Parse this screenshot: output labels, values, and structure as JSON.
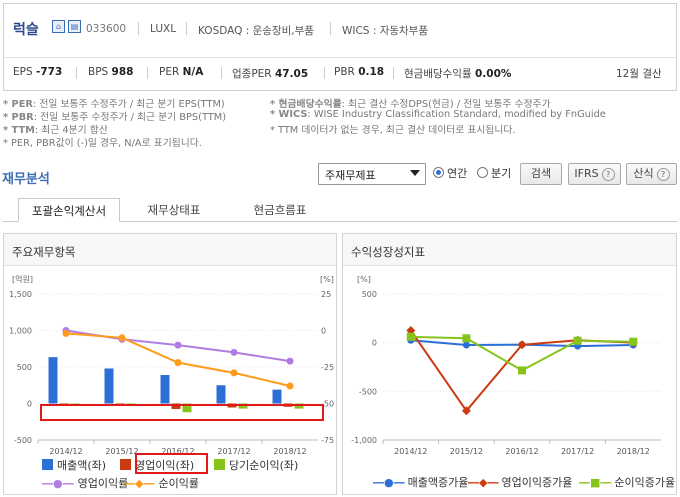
{
  "company": {
    "name": "럭슬",
    "code": "033600",
    "ticker": "LUXL",
    "market": "KOSDAQ : 운송장비,부품",
    "wics": "WICS : 자동차부품",
    "icon1": "building-icon",
    "icon2": "document-icon"
  },
  "stats": {
    "eps_label": "EPS",
    "eps": "-773",
    "bps_label": "BPS",
    "bps": "988",
    "per_label": "PER",
    "per": "N/A",
    "ind_per_label": "업종PER",
    "ind_per": "47.05",
    "pbr_label": "PBR",
    "pbr": "0.18",
    "div_label": "현금배당수익률",
    "div": "0.00%",
    "fiscal": "12월 결산"
  },
  "notes": {
    "left": [
      {
        "key": "* PER",
        "text": ": 전일 보통주 수정주가 / 최근 분기 EPS(TTM)"
      },
      {
        "key": "* PBR",
        "text": ": 전일 보통주 수정주가 / 최근 분기 BPS(TTM)"
      },
      {
        "key": "* TTM",
        "text": ": 최근 4분기 합산"
      },
      {
        "key": "",
        "text": "* PER, PBR값이 (-)일 경우, N/A로 표기됩니다."
      }
    ],
    "right": [
      {
        "key": "* 현금배당수익률",
        "text": ": 최근 결산 수정DPS(현금) / 전일 보통주 수정주가"
      },
      {
        "key": "* WICS",
        "text": ": WISE Industry Classification Standard, modified by FnGuide"
      },
      {
        "key": "",
        "text": "* TTM 데이터가 없는 경우, 최근 결산 데이터로 표시됩니다."
      }
    ]
  },
  "section": {
    "title": "재무분석",
    "select_value": "주재무제표",
    "radio_annual": "연간",
    "radio_quarter": "분기",
    "search_btn": "검색",
    "ifrs_btn": "IFRS",
    "formula_btn": "산식",
    "help_icon": "question-icon"
  },
  "tabs": [
    "포괄손익계산서",
    "재무상태표",
    "현금흐름표"
  ],
  "panels": {
    "left_title": "주요재무항목",
    "right_title": "수익성장성지표"
  },
  "chart_data": [
    {
      "type": "bar",
      "title": "주요재무항목",
      "categories": [
        "2014/12",
        "2015/12",
        "2016/12",
        "2017/12",
        "2018/12"
      ],
      "y_left_unit": "[억원]",
      "y_right_unit": "[%]",
      "ylim_left": [
        -500,
        1500
      ],
      "yticks_left": [
        "-500",
        "0",
        "500",
        "1,000",
        "1,500"
      ],
      "ylim_right": [
        -75,
        25
      ],
      "yticks_right": [
        "-75",
        "-50",
        "-25",
        "0",
        "25"
      ],
      "series": [
        {
          "name": "매출액(좌)",
          "kind": "bar",
          "axis": "left",
          "color": "#2b6fd8",
          "values": [
            635,
            480,
            390,
            250,
            190
          ]
        },
        {
          "name": "영업이익(좌)",
          "kind": "bar",
          "axis": "left",
          "color": "#cc3b10",
          "values": [
            -20,
            -30,
            -75,
            -55,
            -45
          ]
        },
        {
          "name": "당기순이익(좌)",
          "kind": "bar",
          "axis": "left",
          "color": "#86c41b",
          "values": [
            -25,
            -20,
            -120,
            -70,
            -70
          ]
        },
        {
          "name": "영업이익률",
          "kind": "line",
          "axis": "right",
          "color": "#b07ee0",
          "values": [
            0,
            -6,
            -10,
            -15,
            -21
          ]
        },
        {
          "name": "순이익률",
          "kind": "line",
          "axis": "right",
          "color": "#ff9a1a",
          "values": [
            -2,
            -5,
            -22,
            -29,
            -38
          ]
        }
      ]
    },
    {
      "type": "line",
      "title": "수익성장성지표",
      "categories": [
        "2014/12",
        "2015/12",
        "2016/12",
        "2017/12",
        "2018/12"
      ],
      "y_unit": "[%]",
      "ylim": [
        -1000,
        500
      ],
      "yticks": [
        "-1,000",
        "-500",
        "0",
        "500"
      ],
      "series": [
        {
          "name": "매출액증가율",
          "color": "#2b6fd8",
          "marker": "circle",
          "values": [
            25,
            -24,
            -20,
            -35,
            -24
          ]
        },
        {
          "name": "영업이익증가율",
          "color": "#cc3b10",
          "marker": "diamond",
          "values": [
            125,
            -700,
            -22,
            25,
            0
          ]
        },
        {
          "name": "순이익증가율",
          "color": "#86c41b",
          "marker": "square",
          "values": [
            60,
            45,
            -285,
            20,
            10
          ]
        }
      ]
    }
  ]
}
